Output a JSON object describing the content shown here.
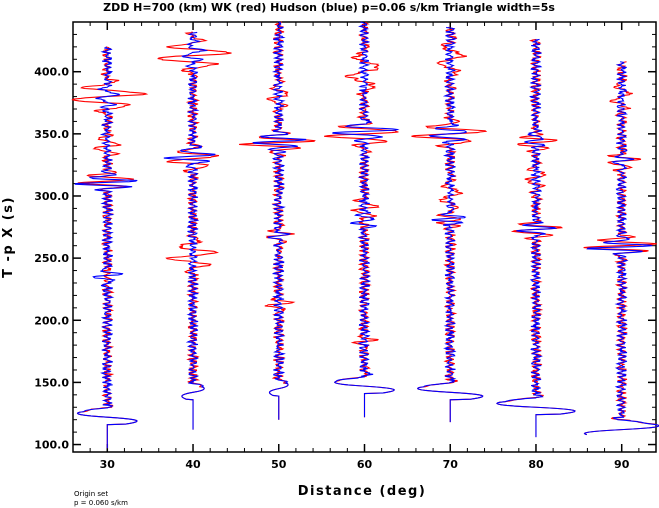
{
  "chart_data": {
    "type": "line",
    "title": "ZDD H=700 (km) WK (red) Hudson (blue) p=0.06 s/km Triangle width=5s",
    "xlabel": "Distance (deg)",
    "ylabel": "T -p X (s)",
    "xlim": [
      26,
      94
    ],
    "ylim": [
      94,
      440
    ],
    "x_ticks": [
      30,
      40,
      50,
      60,
      70,
      80,
      90
    ],
    "x_tick_labels": [
      "30",
      "40",
      "50",
      "60",
      "70",
      "80",
      "90"
    ],
    "y_ticks": [
      100,
      150,
      200,
      250,
      300,
      350,
      400
    ],
    "y_tick_labels": [
      "100.0",
      "150.0",
      "200.0",
      "250.0",
      "300.0",
      "350.0",
      "400.0"
    ],
    "series": [
      {
        "name": "WK",
        "color": "#ff0000"
      },
      {
        "name": "Hudson",
        "color": "#0000ff"
      }
    ],
    "traces": [
      {
        "distance": 30,
        "t_start": 97,
        "t_end": 420,
        "onset": 122,
        "onset_amp": -3.2,
        "onset_dir": 1,
        "red_events": [
          {
            "t": 380,
            "a": 4.5,
            "w": 10
          },
          {
            "t": 312,
            "a": 3.5,
            "w": 6
          },
          {
            "t": 340,
            "a": 1.5,
            "w": 8
          }
        ],
        "blue_events": [
          {
            "t": 311,
            "a": 4,
            "w": 5
          },
          {
            "t": 236,
            "a": 1.6,
            "w": 6
          },
          {
            "t": 380,
            "a": 1.2,
            "w": 8
          }
        ]
      },
      {
        "distance": 40,
        "t_start": 112,
        "t_end": 432,
        "onset": 142,
        "onset_amp": 1.2,
        "onset_dir": 1,
        "red_events": [
          {
            "t": 413,
            "a": 4.5,
            "w": 10
          },
          {
            "t": 330,
            "a": 3,
            "w": 8
          },
          {
            "t": 252,
            "a": 3,
            "w": 10
          }
        ],
        "blue_events": [
          {
            "t": 332,
            "a": 3,
            "w": 6
          },
          {
            "t": 415,
            "a": 1.2,
            "w": 8
          }
        ]
      },
      {
        "distance": 50,
        "t_start": 120,
        "t_end": 440,
        "onset": 145,
        "onset_amp": 1,
        "onset_dir": 1,
        "red_events": [
          {
            "t": 343,
            "a": 4.5,
            "w": 6
          },
          {
            "t": 268,
            "a": 1.5,
            "w": 6
          },
          {
            "t": 213,
            "a": 1.5,
            "w": 6
          },
          {
            "t": 380,
            "a": 1.2,
            "w": 10
          }
        ],
        "blue_events": [
          {
            "t": 344,
            "a": 3.8,
            "w": 5
          },
          {
            "t": 268,
            "a": 0.8,
            "w": 6
          }
        ]
      },
      {
        "distance": 60,
        "t_start": 122,
        "t_end": 440,
        "onset": 147,
        "onset_amp": 3.2,
        "onset_dir": -1,
        "red_events": [
          {
            "t": 350,
            "a": 4.5,
            "w": 8
          },
          {
            "t": 400,
            "a": 1.8,
            "w": 16
          },
          {
            "t": 290,
            "a": 1.5,
            "w": 8
          },
          {
            "t": 183,
            "a": 1.2,
            "w": 6
          }
        ],
        "blue_events": [
          {
            "t": 352,
            "a": 4,
            "w": 6
          },
          {
            "t": 280,
            "a": 1.4,
            "w": 6
          }
        ]
      },
      {
        "distance": 70,
        "t_start": 118,
        "t_end": 436,
        "onset": 142,
        "onset_amp": 3.5,
        "onset_dir": -1,
        "red_events": [
          {
            "t": 350,
            "a": 4.5,
            "w": 8
          },
          {
            "t": 410,
            "a": 1.5,
            "w": 14
          },
          {
            "t": 300,
            "a": 1.2,
            "w": 12
          },
          {
            "t": 280,
            "a": 1.5,
            "w": 6
          }
        ],
        "blue_events": [
          {
            "t": 350,
            "a": 2.5,
            "w": 6
          },
          {
            "t": 282,
            "a": 1.8,
            "w": 5
          }
        ]
      },
      {
        "distance": 80,
        "t_start": 106,
        "t_end": 426,
        "onset": 130,
        "onset_amp": 4.2,
        "onset_dir": -1,
        "red_events": [
          {
            "t": 273,
            "a": 3,
            "w": 6
          },
          {
            "t": 343,
            "a": 2.5,
            "w": 6
          },
          {
            "t": 315,
            "a": 1.2,
            "w": 10
          }
        ],
        "blue_events": [
          {
            "t": 273,
            "a": 2.2,
            "w": 5
          },
          {
            "t": 345,
            "a": 1.2,
            "w": 6
          }
        ]
      },
      {
        "distance": 90,
        "t_start": 108,
        "t_end": 408,
        "onset": 112,
        "onset_amp": 4,
        "onset_dir": 1,
        "red_events": [
          {
            "t": 260,
            "a": 4.5,
            "w": 6
          },
          {
            "t": 328,
            "a": 2,
            "w": 6
          },
          {
            "t": 380,
            "a": 1,
            "w": 12
          }
        ],
        "blue_events": [
          {
            "t": 259,
            "a": 4,
            "w": 5
          },
          {
            "t": 328,
            "a": 1,
            "w": 6
          }
        ]
      }
    ]
  },
  "footnote": {
    "line1": "Origin set",
    "line2": "p = 0.060 s/km"
  }
}
